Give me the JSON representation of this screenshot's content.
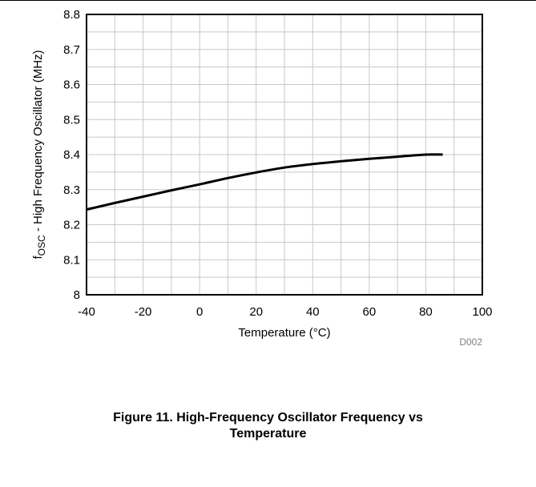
{
  "chart_data": {
    "type": "line",
    "xlabel": "Temperature (°C)",
    "ylabel_main": "f",
    "ylabel_sub": "OSC",
    "ylabel_rest": " - High Frequency Oscillator (MHz)",
    "xlim": [
      -40,
      100
    ],
    "ylim": [
      8.0,
      8.8
    ],
    "x_ticks": [
      -40,
      -20,
      0,
      20,
      40,
      60,
      80,
      100
    ],
    "x_tick_labels": [
      "-40",
      "-20",
      "0",
      "20",
      "40",
      "60",
      "80",
      "100"
    ],
    "y_ticks": [
      8.0,
      8.1,
      8.2,
      8.3,
      8.4,
      8.5,
      8.6,
      8.7,
      8.8
    ],
    "y_tick_labels": [
      "8",
      "8.1",
      "8.2",
      "8.3",
      "8.4",
      "8.5",
      "8.6",
      "8.7",
      "8.8"
    ],
    "grid": true,
    "series": [
      {
        "x": [
          -40,
          -30,
          -20,
          -10,
          0,
          10,
          20,
          30,
          40,
          50,
          60,
          70,
          80,
          86
        ],
        "y": [
          8.243,
          8.262,
          8.28,
          8.298,
          8.315,
          8.333,
          8.349,
          8.363,
          8.373,
          8.381,
          8.388,
          8.394,
          8.4,
          8.4
        ]
      }
    ],
    "code": "D002"
  },
  "caption": {
    "line1": "Figure 11. High-Frequency Oscillator Frequency vs",
    "line2": "Temperature"
  }
}
